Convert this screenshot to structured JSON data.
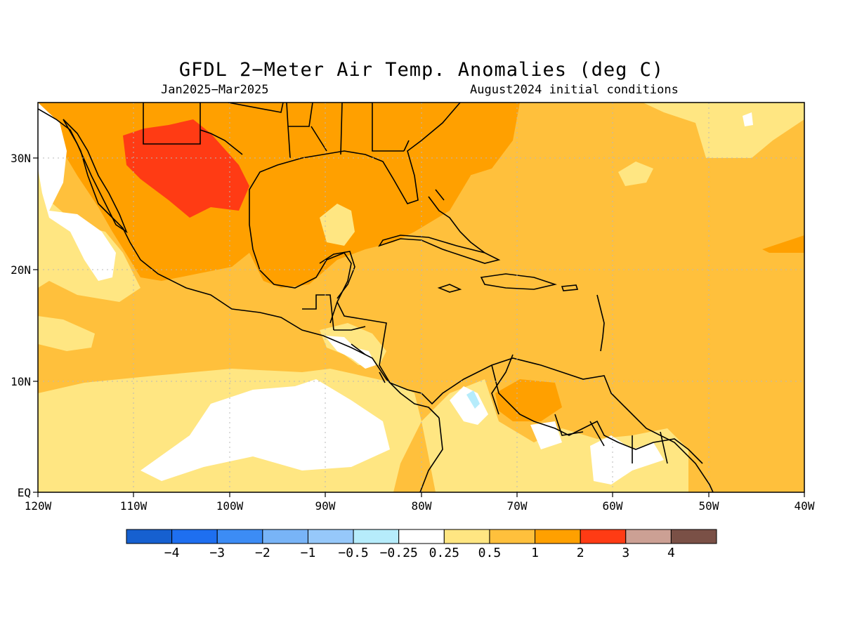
{
  "title": "GFDL 2−Meter Air Temp. Anomalies (deg C)",
  "subtitle_left": "Jan2025−Mar2025",
  "subtitle_right": "August2024 initial conditions",
  "axes": {
    "lon_labels": [
      "120W",
      "110W",
      "100W",
      "90W",
      "80W",
      "70W",
      "60W",
      "50W",
      "40W"
    ],
    "lat_labels": [
      "EQ",
      "10N",
      "20N",
      "30N"
    ],
    "lon_range": [
      -120,
      -40
    ],
    "lat_range": [
      0,
      35
    ]
  },
  "colorbar": {
    "colors": [
      "#1660d0",
      "#1e6ff0",
      "#3c8cf5",
      "#78b4f7",
      "#96c8fa",
      "#b6ecfb",
      "#ffffff",
      "#ffe682",
      "#ffc03c",
      "#ffa000",
      "#ff3b14",
      "#cca094",
      "#7a5046"
    ],
    "labels": [
      "−4",
      "−3",
      "−2",
      "−1",
      "−0.5",
      "−0.25",
      "0.25",
      "0.5",
      "1",
      "2",
      "3",
      "4"
    ]
  },
  "map_colors": {
    "background": "#ffc03c",
    "white": "#ffffff",
    "light_yellow": "#ffe682",
    "orange": "#ffa000",
    "red": "#ff3b14",
    "light_blue": "#b6ecfb"
  }
}
